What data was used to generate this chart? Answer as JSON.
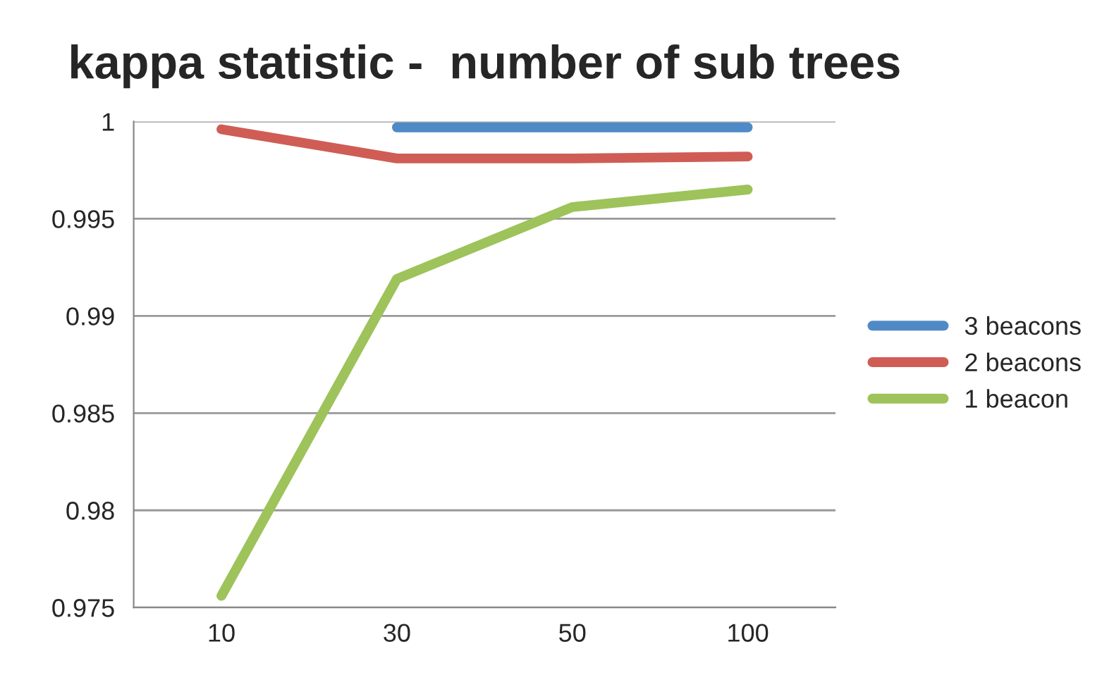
{
  "chart_data": {
    "type": "line",
    "title": "kappa statistic -  number of sub trees",
    "categories": [
      "10",
      "30",
      "50",
      "100"
    ],
    "series": [
      {
        "name": "3 beacons",
        "color": "#4f8ac6",
        "values": [
          null,
          0.9997,
          0.9997,
          0.9997
        ]
      },
      {
        "name": "2 beacons",
        "color": "#cf5d55",
        "values": [
          0.9996,
          0.9981,
          0.9981,
          0.9982
        ]
      },
      {
        "name": "1 beacon",
        "color": "#9dc35a",
        "values": [
          0.9756,
          0.9919,
          0.9956,
          0.9965
        ]
      }
    ],
    "ylim": [
      0.975,
      1
    ],
    "yticks": [
      0.975,
      0.98,
      0.985,
      0.99,
      0.995,
      1
    ],
    "grid": "y",
    "legend": "right",
    "marker": "none",
    "line_style": "solid"
  }
}
